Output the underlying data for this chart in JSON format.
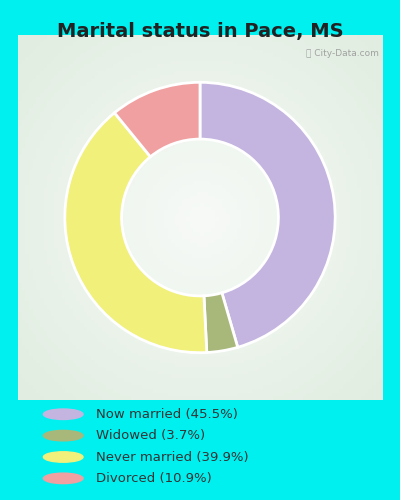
{
  "title": "Marital status in Pace, MS",
  "categories": [
    "Now married",
    "Widowed",
    "Never married",
    "Divorced"
  ],
  "values": [
    45.5,
    3.7,
    39.9,
    10.9
  ],
  "colors": [
    "#c4b4e0",
    "#a8b87a",
    "#f0f07a",
    "#f0a0a0"
  ],
  "legend_labels": [
    "Now married (45.5%)",
    "Widowed (3.7%)",
    "Never married (39.9%)",
    "Divorced (10.9%)"
  ],
  "outer_bg": "#00f0f0",
  "chart_bg_top": "#e8f5ee",
  "chart_bg_bottom": "#c8e8d8",
  "title_fontsize": 14,
  "donut_width": 0.42,
  "watermark": "City-Data.com"
}
